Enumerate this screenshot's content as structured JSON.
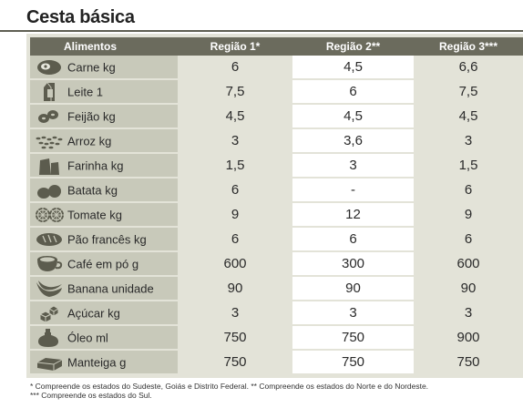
{
  "title": "Cesta básica",
  "table": {
    "headers": [
      "Alimentos",
      "Região 1*",
      "Região 2**",
      "Região 3***"
    ],
    "rows": [
      {
        "icon": "meat-icon",
        "item": "Carne kg",
        "r1": "6",
        "r2": "4,5",
        "r3": "6,6"
      },
      {
        "icon": "milk-carton-icon",
        "item": "Leite 1",
        "r1": "7,5",
        "r2": "6",
        "r3": "7,5"
      },
      {
        "icon": "beans-icon",
        "item": "Feijão kg",
        "r1": "4,5",
        "r2": "4,5",
        "r3": "4,5"
      },
      {
        "icon": "rice-icon",
        "item": "Arroz kg",
        "r1": "3",
        "r2": "3,6",
        "r3": "3"
      },
      {
        "icon": "flour-bag-icon",
        "item": "Farinha kg",
        "r1": "1,5",
        "r2": "3",
        "r3": "1,5"
      },
      {
        "icon": "potato-icon",
        "item": "Batata kg",
        "r1": "6",
        "r2": "-",
        "r3": "6"
      },
      {
        "icon": "tomato-icon",
        "item": "Tomate kg",
        "r1": "9",
        "r2": "12",
        "r3": "9"
      },
      {
        "icon": "bread-icon",
        "item": "Pão francês kg",
        "r1": "6",
        "r2": "6",
        "r3": "6"
      },
      {
        "icon": "coffee-cup-icon",
        "item": "Café em pó g",
        "r1": "600",
        "r2": "300",
        "r3": "600"
      },
      {
        "icon": "banana-icon",
        "item": "Banana unidade",
        "r1": "90",
        "r2": "90",
        "r3": "90"
      },
      {
        "icon": "sugar-cubes-icon",
        "item": "Açúcar kg",
        "r1": "3",
        "r2": "3",
        "r3": "3"
      },
      {
        "icon": "oil-jug-icon",
        "item": "Óleo ml",
        "r1": "750",
        "r2": "750",
        "r3": "900"
      },
      {
        "icon": "butter-icon",
        "item": "Manteiga g",
        "r1": "750",
        "r2": "750",
        "r3": "750"
      }
    ]
  },
  "footnotes": {
    "line1": "* Compreende os estados do Sudeste, Goiás e Distrito Federal.  ** Compreende os estados do Norte e do Nordeste.",
    "line2": "*** Compreende os estados do Sul."
  },
  "colors": {
    "header_bg": "#6b6b5d",
    "food_col_bg": "#c8c9ba",
    "panel_bg": "#e3e3d8",
    "region2_bg": "#ffffff",
    "rule": "#5e5e52"
  }
}
